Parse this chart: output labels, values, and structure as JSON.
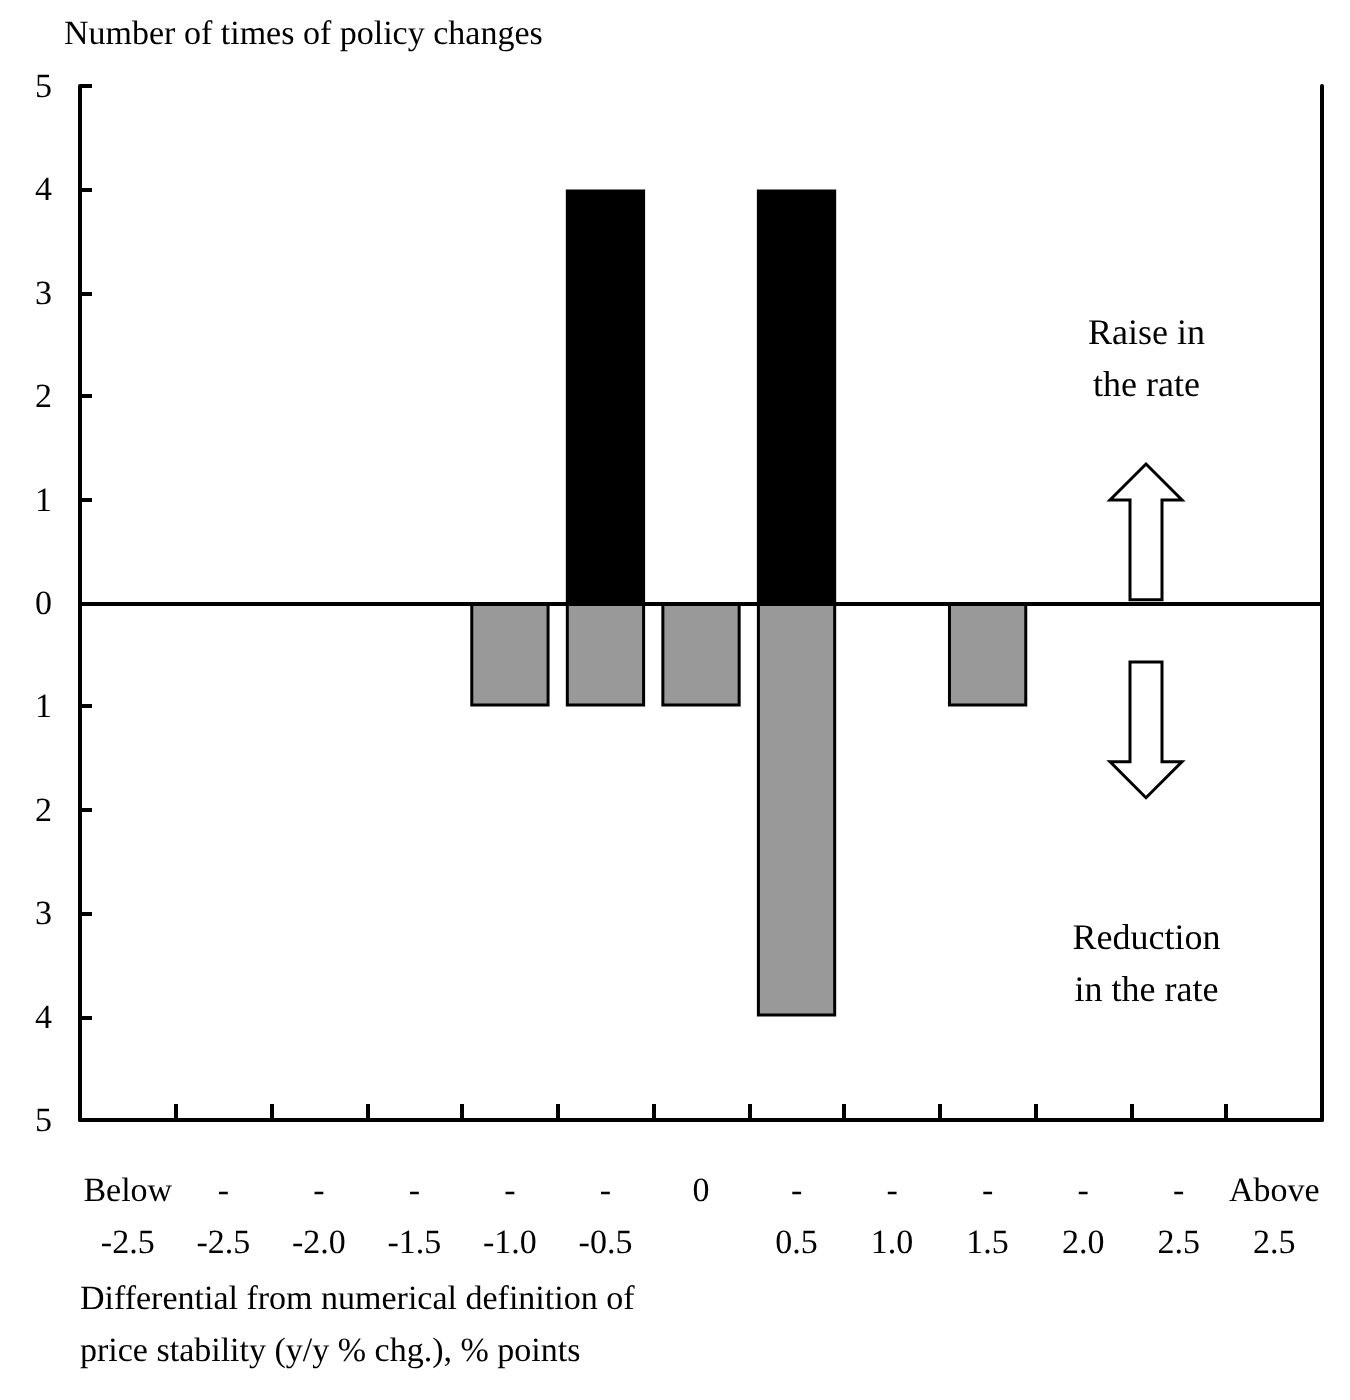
{
  "chart_data": {
    "type": "bar",
    "ylabel": "Number of times of policy changes",
    "xlabel": "Differential from numerical definition of price stability (y/y % chg.), % points",
    "categories": [
      "Below\n-2.5",
      "-\n-2.5",
      "-\n-2.0",
      "-\n-1.5",
      "-\n-1.0",
      "-\n-0.5",
      "0",
      "-\n0.5",
      "-\n1.0",
      "-\n1.5",
      "-\n2.0",
      "-\n2.5",
      "Above\n2.5"
    ],
    "stacked": true,
    "series": [
      {
        "color": "#000000",
        "values": [
          null,
          null,
          null,
          null,
          null,
          4,
          null,
          4,
          null,
          null,
          null,
          null,
          null
        ]
      },
      {
        "color": "#999999",
        "values": [
          null,
          null,
          null,
          null,
          -1,
          -1,
          -1,
          -4,
          null,
          -1,
          null,
          null,
          null
        ]
      }
    ],
    "ylim": [
      -5,
      5
    ],
    "yticks": [
      {
        "value": -5,
        "label": "5"
      },
      {
        "value": -4,
        "label": "4"
      },
      {
        "value": -3,
        "label": "3"
      },
      {
        "value": -2,
        "label": "2"
      },
      {
        "value": -1,
        "label": "1"
      },
      0,
      1,
      2,
      3,
      4,
      5
    ],
    "annotations": [
      "Raise in\nthe rate",
      "Reduction\nin the rate"
    ]
  }
}
